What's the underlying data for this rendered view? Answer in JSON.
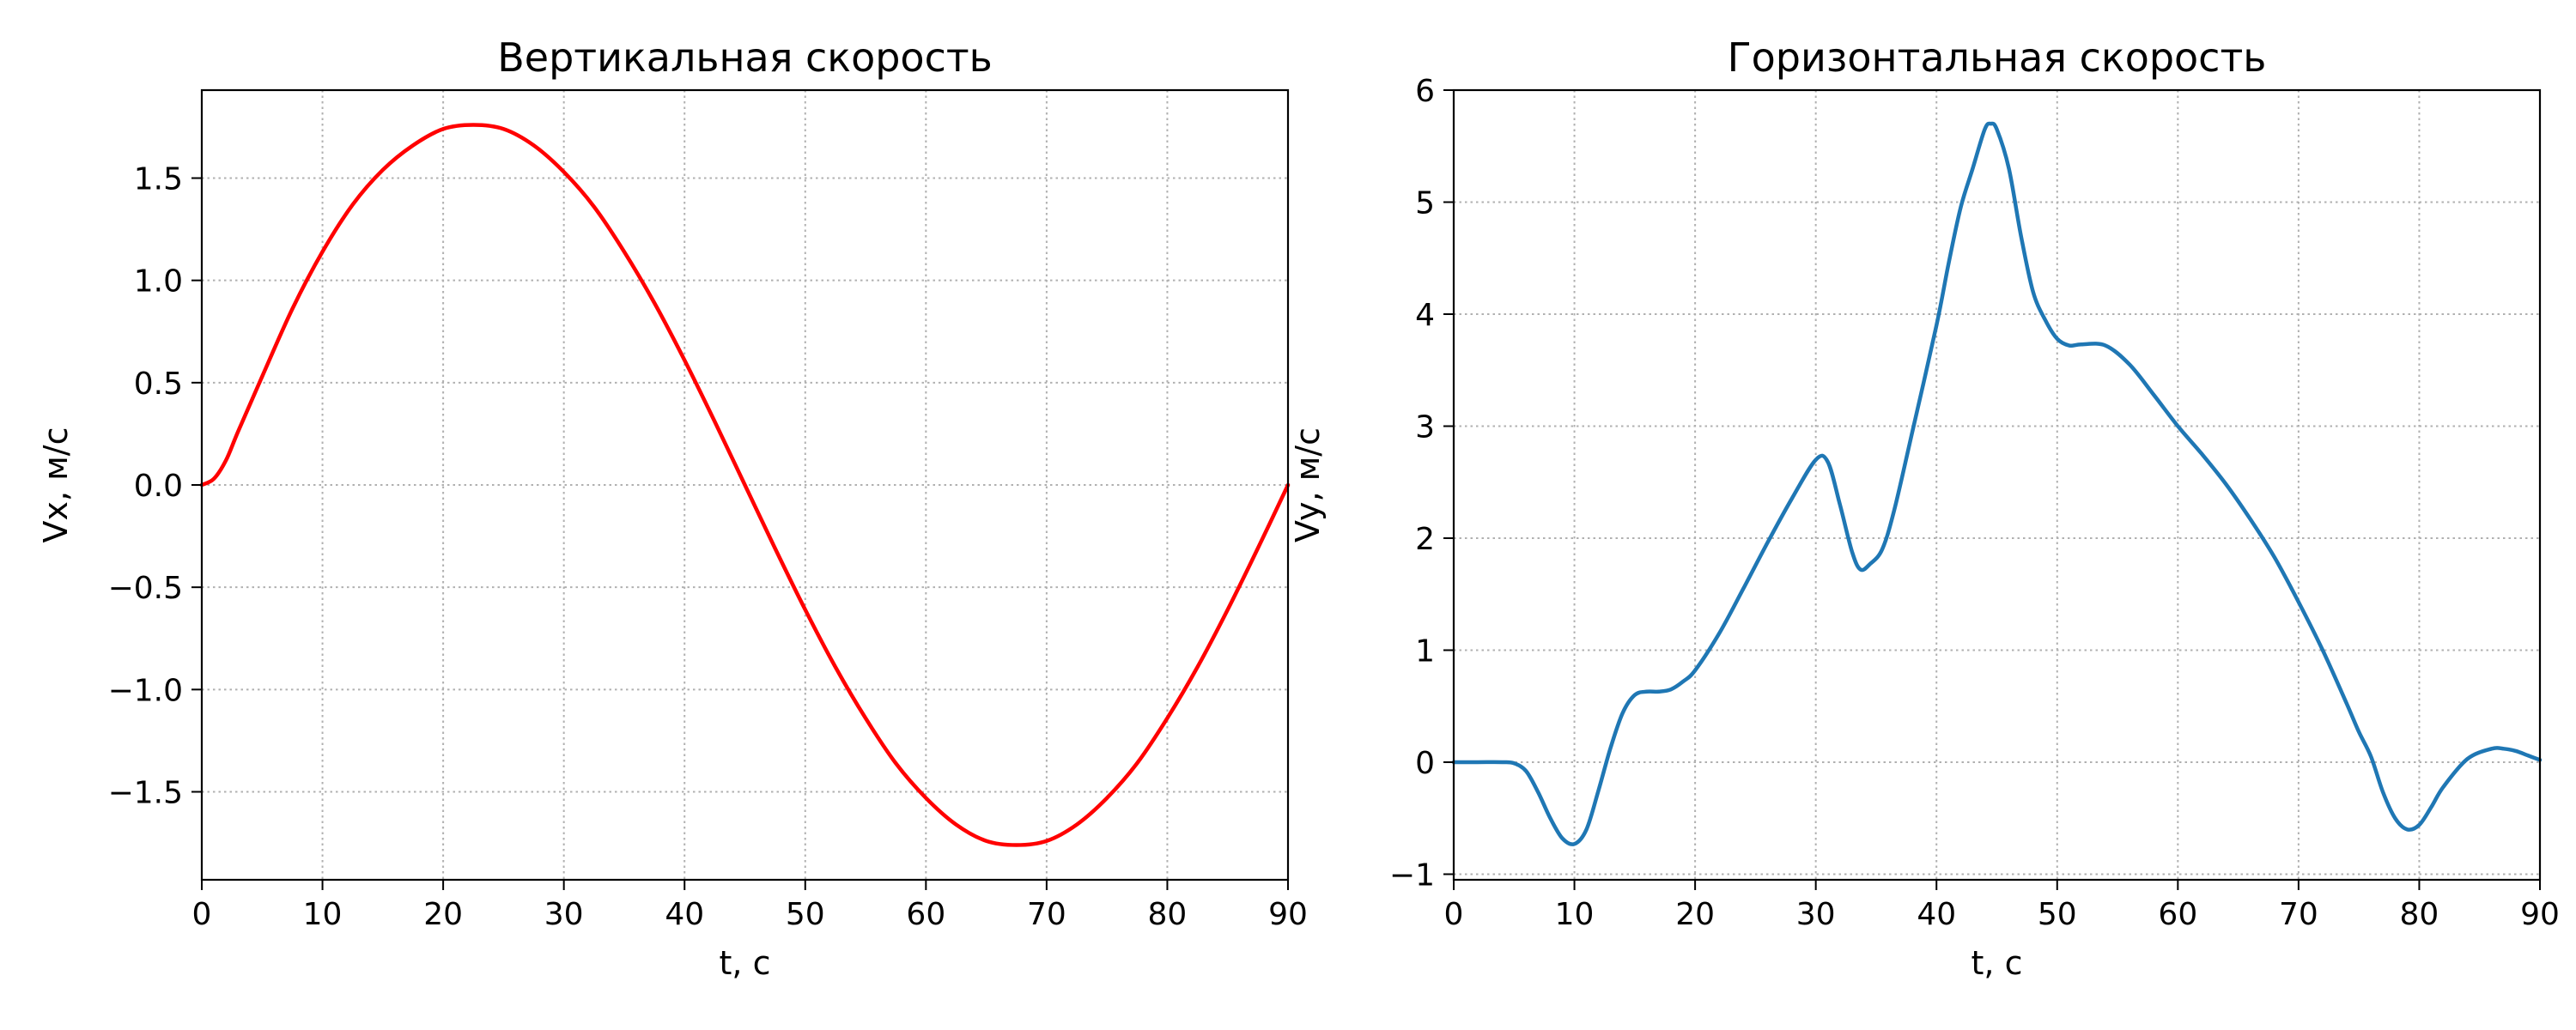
{
  "chart_data": [
    {
      "type": "line",
      "title": "Вертикальная скорость",
      "xlabel": "t, c",
      "ylabel": "Vx, м/с",
      "xlim": [
        0,
        90
      ],
      "ylim": [
        -1.93,
        1.93
      ],
      "xticks": [
        0,
        10,
        20,
        30,
        40,
        50,
        60,
        70,
        80,
        90
      ],
      "yticks": [
        -1.5,
        -1.0,
        -0.5,
        0.0,
        0.5,
        1.0,
        1.5
      ],
      "ytick_labels": [
        "−1.5",
        "−1.0",
        "−0.5",
        "0.0",
        "0.5",
        "1.0",
        "1.5"
      ],
      "grid": true,
      "color": "#ff0000",
      "series": [
        {
          "x": [
            0,
            1,
            2,
            3,
            5,
            7.5,
            10,
            12.5,
            15,
            17.5,
            20,
            22.5,
            25,
            27.5,
            30,
            32.5,
            35,
            37.5,
            40,
            42.5,
            45,
            47.5,
            50,
            52.5,
            55,
            57.5,
            60,
            62.5,
            65,
            67.5,
            70,
            72.5,
            75,
            77.5,
            80,
            82.5,
            85,
            87.5,
            90
          ],
          "y": [
            0.0,
            0.03,
            0.12,
            0.26,
            0.53,
            0.86,
            1.14,
            1.37,
            1.54,
            1.66,
            1.74,
            1.76,
            1.74,
            1.66,
            1.53,
            1.36,
            1.14,
            0.89,
            0.61,
            0.31,
            0.0,
            -0.31,
            -0.61,
            -0.89,
            -1.14,
            -1.36,
            -1.53,
            -1.66,
            -1.74,
            -1.76,
            -1.74,
            -1.66,
            -1.53,
            -1.36,
            -1.14,
            -0.89,
            -0.61,
            -0.31,
            0.0
          ]
        }
      ]
    },
    {
      "type": "line",
      "title": "Горизонтальная скорость",
      "xlabel": "t, c",
      "ylabel": "Vy, м/с",
      "xlim": [
        0,
        90
      ],
      "ylim": [
        -1.05,
        6.0
      ],
      "xticks": [
        0,
        10,
        20,
        30,
        40,
        50,
        60,
        70,
        80,
        90
      ],
      "yticks": [
        -1,
        0,
        1,
        2,
        3,
        4,
        5,
        6
      ],
      "ytick_labels": [
        "−1",
        "0",
        "1",
        "2",
        "3",
        "4",
        "5",
        "6"
      ],
      "grid": true,
      "color": "#1f77b4",
      "series": [
        {
          "x": [
            0,
            2,
            4,
            5,
            6,
            7,
            8,
            9,
            10,
            11,
            12,
            13,
            14,
            15,
            16,
            17,
            18,
            19,
            20,
            22,
            24,
            26,
            28,
            30,
            31,
            32,
            33,
            33.7,
            34.5,
            35.5,
            36.5,
            38,
            40,
            41,
            42,
            43,
            44,
            44.5,
            45,
            46,
            47,
            48,
            49,
            50,
            51,
            52,
            54,
            56,
            58,
            60,
            62,
            64,
            66,
            68,
            70,
            72,
            74,
            75,
            76,
            77,
            78,
            79,
            80,
            81,
            82,
            84,
            86,
            87,
            88,
            89,
            90
          ],
          "y": [
            0.0,
            0.0,
            0.0,
            -0.01,
            -0.08,
            -0.27,
            -0.5,
            -0.68,
            -0.73,
            -0.6,
            -0.25,
            0.13,
            0.44,
            0.6,
            0.63,
            0.63,
            0.65,
            0.72,
            0.82,
            1.15,
            1.55,
            1.96,
            2.35,
            2.7,
            2.68,
            2.3,
            1.88,
            1.72,
            1.77,
            1.9,
            2.25,
            2.95,
            3.9,
            4.45,
            4.95,
            5.3,
            5.65,
            5.7,
            5.65,
            5.3,
            4.7,
            4.2,
            3.95,
            3.78,
            3.72,
            3.73,
            3.72,
            3.55,
            3.28,
            3.0,
            2.75,
            2.48,
            2.17,
            1.83,
            1.43,
            1.0,
            0.52,
            0.27,
            0.05,
            -0.27,
            -0.5,
            -0.6,
            -0.56,
            -0.4,
            -0.22,
            0.03,
            0.12,
            0.12,
            0.1,
            0.06,
            0.02
          ]
        }
      ]
    }
  ]
}
